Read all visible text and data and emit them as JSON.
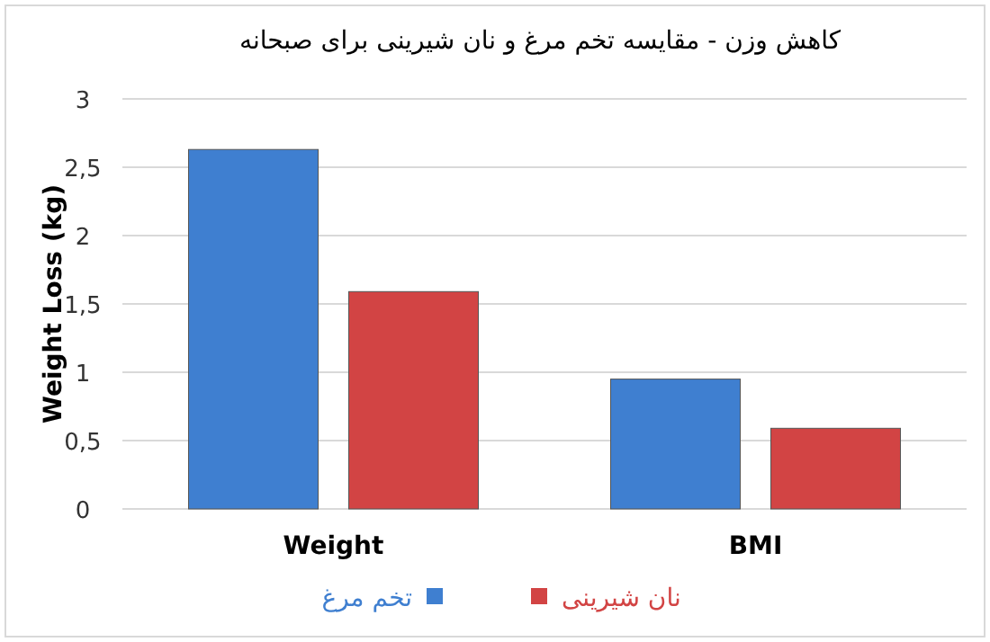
{
  "chart_data": {
    "type": "bar",
    "title": "کاهش وزن -  مقایسه تخم مرغ و نان شیرینی برای صبحانه",
    "ylabel": "Weight Loss (kg)",
    "categories": [
      "Weight",
      "BMI"
    ],
    "series": [
      {
        "name": "تخم مرغ",
        "color": "#3f7fd0",
        "values": [
          2.63,
          0.95
        ]
      },
      {
        "name": "نان شیرینی",
        "color": "#d24444",
        "values": [
          1.59,
          0.59
        ]
      }
    ],
    "ylim": [
      0,
      3
    ],
    "yticks": [
      0,
      {
        "value": 0.5,
        "label": "0,5"
      },
      1,
      {
        "value": 1.5,
        "label": "1,5"
      },
      2,
      {
        "value": 2.5,
        "label": "2,5"
      },
      3
    ],
    "grid": "y",
    "legend": "bottom"
  }
}
